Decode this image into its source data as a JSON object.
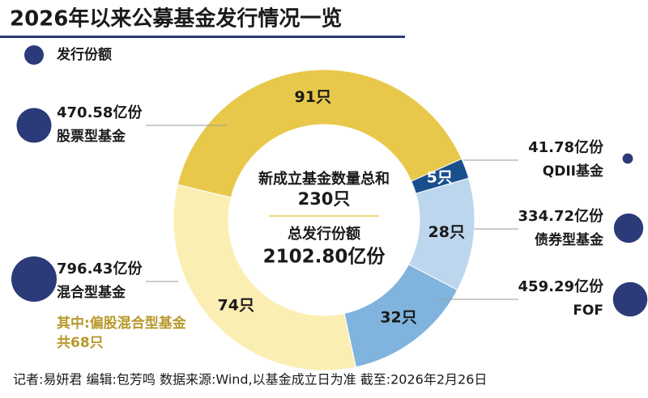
{
  "chart_data": {
    "type": "donut",
    "title": "2026年以来公募基金发行情况一览",
    "legend_label": "发行份额",
    "categories": [
      "股票型基金",
      "QDII基金",
      "债券型基金",
      "FOF",
      "混合型基金"
    ],
    "values": [
      91,
      5,
      28,
      32,
      74
    ],
    "value_labels": [
      "91只",
      "5只",
      "28只",
      "32只",
      "74只"
    ],
    "colors": [
      "#e8c84a",
      "#1a4f8e",
      "#bcd6ee",
      "#80b4de",
      "#fbeeb2"
    ],
    "amounts": [
      470.58,
      41.78,
      334.72,
      459.29,
      796.43
    ],
    "amount_labels": [
      "470.58亿份",
      "41.78亿份",
      "334.72亿份",
      "459.29亿份",
      "796.43亿份"
    ],
    "bubble_color": "#2b3a78",
    "center_count_title": "新成立基金数量总和",
    "center_count": "230只",
    "center_amount_title": "总发行份额",
    "center_amount": "2102.80亿份",
    "annotation": [
      "其中:偏股混合型基金",
      "共68只"
    ],
    "footer": "记者:易妍君  编辑:包芳鸣  数据来源:Wind,以基金成立日为准  截至:2026年2月26日"
  }
}
